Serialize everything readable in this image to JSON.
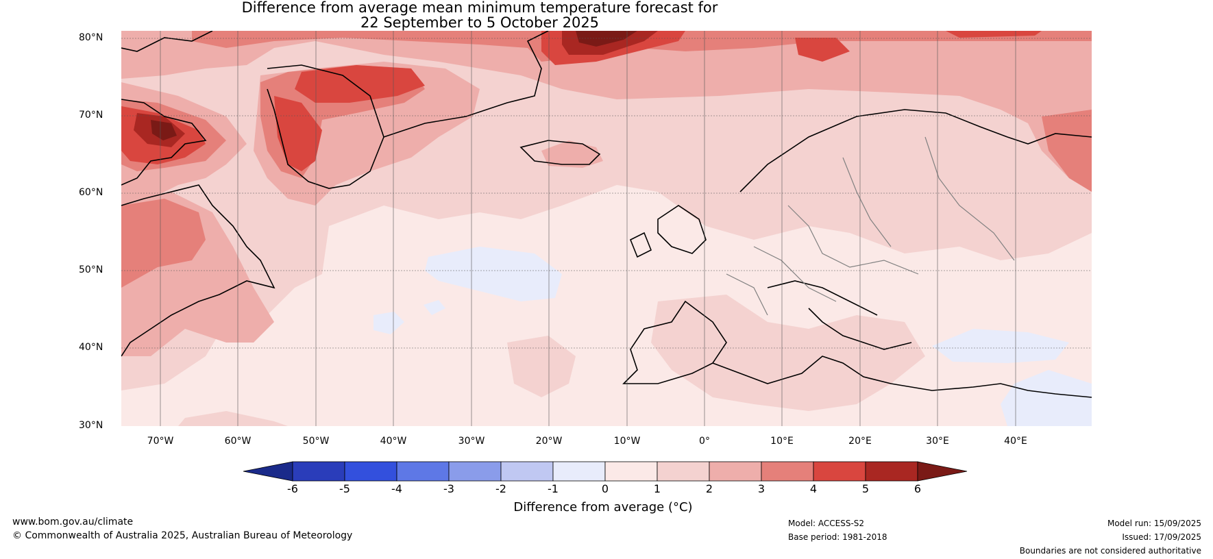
{
  "title": {
    "line1": "Difference from average mean minimum temperature forecast for",
    "line2": "22 September to 5 October 2025"
  },
  "map": {
    "lat_labels": [
      "80°N",
      "70°N",
      "60°N",
      "50°N",
      "40°N",
      "30°N"
    ],
    "lon_labels": [
      "70°W",
      "60°W",
      "50°W",
      "40°W",
      "30°W",
      "20°W",
      "10°W",
      "0°",
      "10°E",
      "20°E",
      "30°E",
      "40°E"
    ],
    "extent": {
      "lon_min": -75,
      "lon_max": 50,
      "lat_min": 30,
      "lat_max": 81
    },
    "ocean_color": "#fbe9e7"
  },
  "colorbar": {
    "ticks": [
      "-6",
      "-5",
      "-4",
      "-3",
      "-2",
      "-1",
      "0",
      "1",
      "2",
      "3",
      "4",
      "5",
      "6"
    ],
    "colors": [
      "#1a2a8a",
      "#2a3dba",
      "#3350dd",
      "#5e78e6",
      "#8a9cea",
      "#c0c8f2",
      "#e8ecfb",
      "#fbe9e7",
      "#f4d2d0",
      "#eeaeab",
      "#e5807a",
      "#d9463f",
      "#a92722",
      "#7a1a16"
    ],
    "label": "Difference from average (°C)"
  },
  "footer": {
    "website": "www.bom.gov.au/climate",
    "copyright": "© Commonwealth of Australia 2025, Australian Bureau of Meteorology",
    "model": "Model: ACCESS-S2",
    "base_period": "Base period: 1981-2018",
    "model_run": "Model run: 15/09/2025",
    "issued": "Issued: 17/09/2025",
    "disclaimer": "Boundaries are not considered authoritative"
  }
}
